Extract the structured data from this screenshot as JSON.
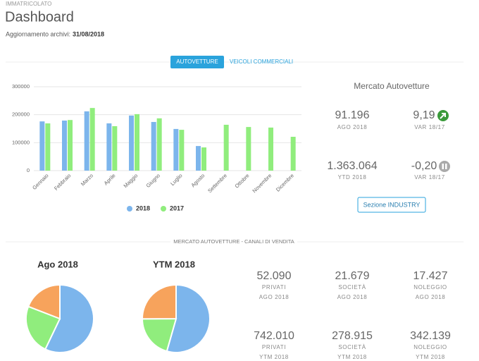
{
  "header": {
    "section": "IMMATRICOLATO",
    "title": "Dashboard",
    "update_label": "Aggiornamento archivi:",
    "update_date": "31/08/2018"
  },
  "tabs": [
    "AUTOVETTURE",
    "VEICOLI COMMERCIALI"
  ],
  "chart_data": [
    {
      "type": "bar",
      "categories": [
        "Gennaio",
        "Febbraio",
        "Marzo",
        "Aprile",
        "Maggio",
        "Giugno",
        "Luglio",
        "Agosto",
        "Settembre",
        "Ottobre",
        "Novembre",
        "Dicembre"
      ],
      "series": [
        {
          "name": "2018",
          "color": "#7cb5ec",
          "values": [
            176000,
            179000,
            212000,
            169000,
            197000,
            174000,
            149000,
            88000,
            null,
            null,
            null,
            null
          ]
        },
        {
          "name": "2017",
          "color": "#90ed7d",
          "values": [
            169000,
            181000,
            224000,
            159000,
            202000,
            187000,
            146000,
            83000,
            164000,
            156000,
            154000,
            121000
          ]
        }
      ],
      "ylim": [
        0,
        300000
      ],
      "yticks": [
        0,
        100000,
        200000,
        300000
      ],
      "grid": true,
      "legend": "bottom"
    },
    {
      "type": "pie",
      "title": "Ago 2018",
      "values": [
        52090,
        21679,
        17427
      ],
      "colors": [
        "#7cb5ec",
        "#90ed7d",
        "#f7a35c"
      ]
    },
    {
      "type": "pie",
      "title": "YTM 2018",
      "values": [
        742010,
        278915,
        342139
      ],
      "colors": [
        "#7cb5ec",
        "#90ed7d",
        "#f7a35c"
      ]
    }
  ],
  "market": {
    "title": "Mercato Autovetture",
    "stats": [
      {
        "value": "91.196",
        "label": "AGO 2018"
      },
      {
        "value": "9,19",
        "label": "VAR 18/17"
      },
      {
        "value": "1.363.064",
        "label": "YTD 2018"
      },
      {
        "value": "-0,20",
        "label": "VAR 18/17"
      }
    ],
    "button": "Sezione INDUSTRY"
  },
  "channels": {
    "title": "MERCATO AUTOVETTURE - CANALI DI VENDITA",
    "stats": [
      {
        "value": "52.090",
        "label": "PRIVATI",
        "period": "AGO 2018"
      },
      {
        "value": "21.679",
        "label": "SOCIETÀ",
        "period": "AGO 2018"
      },
      {
        "value": "17.427",
        "label": "NOLEGGIO",
        "period": "AGO 2018"
      },
      {
        "value": "742.010",
        "label": "PRIVATI",
        "period": "YTM 2018"
      },
      {
        "value": "278.915",
        "label": "SOCIETÀ",
        "period": "YTM 2018"
      },
      {
        "value": "342.139",
        "label": "NOLEGGIO",
        "period": "YTM 2018"
      }
    ]
  }
}
